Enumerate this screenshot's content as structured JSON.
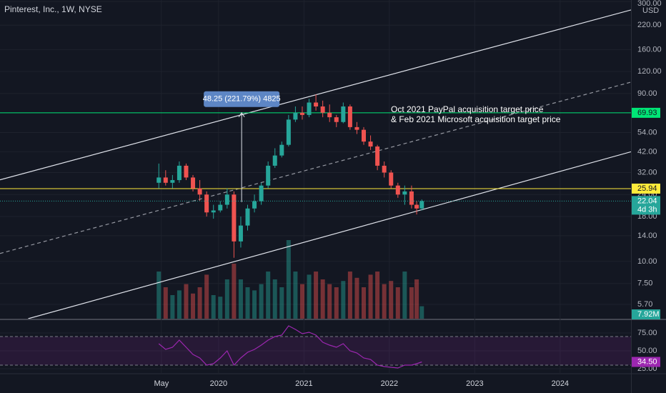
{
  "chart_data": {
    "type": "candlestick",
    "title": "Pinterest, Inc., 1W, NYSE",
    "log_scale": true,
    "y_unit": "USD",
    "up_color": "#26a69a",
    "down_color": "#ef5350",
    "grid": true,
    "xlim": [
      2017.44,
      2024.83
    ],
    "xticks": [
      {
        "value": 2019.33,
        "label": "May"
      },
      2020,
      2021,
      2022,
      2023,
      2024
    ],
    "ylim": [
      4.73,
      306
    ],
    "yticks": [
      {
        "value": 300,
        "label": "300.00"
      },
      {
        "value": 220,
        "label": "220.00"
      },
      {
        "value": 160,
        "label": "160.00"
      },
      {
        "value": 120,
        "label": "120.00"
      },
      {
        "value": 90,
        "label": "90.00"
      },
      {
        "value": 54,
        "label": "54.00"
      },
      {
        "value": 42,
        "label": "42.00"
      },
      {
        "value": 32,
        "label": "32.00"
      },
      {
        "value": 24,
        "label": "24.00"
      },
      {
        "value": 18,
        "label": "18.00"
      },
      {
        "value": 14,
        "label": "14.00"
      },
      {
        "value": 10,
        "label": "10.00"
      },
      {
        "value": 7.5,
        "label": "7.50"
      },
      {
        "value": 5.7,
        "label": "5.70"
      }
    ],
    "x": [
      2019.3,
      2019.38,
      2019.46,
      2019.54,
      2019.62,
      2019.7,
      2019.78,
      2019.86,
      2019.94,
      2020.02,
      2020.1,
      2020.18,
      2020.26,
      2020.34,
      2020.42,
      2020.5,
      2020.58,
      2020.66,
      2020.74,
      2020.82,
      2020.9,
      2020.98,
      2021.06,
      2021.14,
      2021.22,
      2021.3,
      2021.38,
      2021.46,
      2021.54,
      2021.62,
      2021.7,
      2021.78,
      2021.86,
      2021.94,
      2022.02,
      2022.1,
      2022.18,
      2022.26,
      2022.32,
      2022.38
    ],
    "open": [
      28,
      30,
      28,
      29,
      35,
      30,
      26,
      24,
      19,
      19.5,
      21,
      24,
      13,
      16,
      20,
      22,
      27,
      35,
      40,
      46,
      64,
      70,
      68,
      80,
      76,
      70,
      66,
      62,
      76,
      58,
      56,
      48,
      45,
      35,
      32,
      27,
      24,
      25,
      21,
      20
    ],
    "high": [
      36,
      33,
      31,
      37,
      36,
      31,
      29,
      25,
      21,
      22,
      26,
      25,
      18,
      21,
      24,
      28,
      37,
      44,
      48,
      68,
      76,
      76,
      84,
      89,
      82,
      78,
      68,
      80,
      78,
      62,
      58,
      52,
      46,
      37,
      33,
      28,
      27,
      27,
      22,
      22.5
    ],
    "low": [
      26,
      27,
      26,
      28,
      29,
      25,
      22,
      18,
      17.5,
      19,
      20,
      10.5,
      12,
      15,
      19,
      21,
      26,
      34,
      39,
      45,
      62,
      64,
      66,
      72,
      66,
      62,
      58,
      61,
      56,
      53,
      46,
      43,
      33,
      30,
      26,
      23,
      21,
      20,
      18.5,
      19.5
    ],
    "close": [
      30,
      28,
      29,
      35,
      30,
      26,
      24,
      19,
      19.5,
      21,
      24,
      13,
      16,
      20,
      22,
      27,
      35,
      40,
      46,
      64,
      70,
      68,
      80,
      76,
      70,
      66,
      62,
      76,
      58,
      56,
      48,
      45,
      35,
      32,
      27,
      24,
      25,
      21,
      20,
      22.04
    ],
    "hlines": [
      {
        "value": 69.93,
        "label": "69.93",
        "color": "#00e676"
      },
      {
        "value": 25.94,
        "label": "25.94",
        "color": "#ffeb3b"
      }
    ],
    "last_price": {
      "value": 22.04,
      "label": "22.04",
      "countdown": "4d 3h",
      "color": "#26a69a"
    },
    "trendlines": [
      {
        "points": [
          [
            2017.44,
            29.1
          ],
          [
            2024.83,
            268.7
          ]
        ],
        "dashed": false
      },
      {
        "points": [
          [
            2017.44,
            11.1
          ],
          [
            2024.83,
            104.5
          ]
        ],
        "dashed": true
      },
      {
        "points": [
          [
            2017.77,
            4.73
          ],
          [
            2024.83,
            42
          ]
        ],
        "dashed": false
      }
    ],
    "measure": {
      "x": 2020.27,
      "from": 21.75,
      "to": 70,
      "label": "48.25 (221.79%) 4825"
    },
    "annotation": [
      "Oct 2021 PayPal acquisition target price",
      "& Feb 2021 Microsoft acquisition target price"
    ],
    "volume": {
      "values": [
        30,
        20,
        15,
        18,
        22,
        16,
        20,
        28,
        15,
        14,
        25,
        35,
        25,
        20,
        18,
        22,
        30,
        25,
        20,
        50,
        30,
        22,
        28,
        30,
        25,
        22,
        20,
        24,
        30,
        26,
        20,
        28,
        30,
        22,
        24,
        20,
        30,
        20,
        25,
        7.92
      ],
      "value_labels": [
        null,
        null,
        null,
        null,
        null,
        null,
        null,
        null,
        null,
        null,
        null,
        null,
        null,
        null,
        null,
        null,
        null,
        null,
        null,
        null,
        null,
        null,
        null,
        null,
        null,
        null,
        null,
        null,
        null,
        null,
        null,
        null,
        null,
        null,
        null,
        null,
        null,
        null,
        null,
        "7.92M"
      ]
    },
    "rsi": {
      "color": "#9c27b0",
      "ylim": [
        19,
        91
      ],
      "yticks": [
        {
          "value": 75,
          "label": "75.00"
        },
        {
          "value": 50,
          "label": "50.00"
        },
        {
          "value": 25,
          "label": "25.00"
        }
      ],
      "band": [
        30,
        70
      ],
      "values": [
        60,
        52,
        55,
        65,
        55,
        45,
        40,
        30,
        32,
        40,
        50,
        30,
        40,
        48,
        52,
        58,
        65,
        70,
        72,
        85,
        80,
        74,
        76,
        72,
        62,
        58,
        55,
        60,
        50,
        47,
        40,
        38,
        30,
        28,
        27,
        26,
        30,
        30,
        32,
        34.5
      ],
      "last_label": "34.50"
    }
  }
}
